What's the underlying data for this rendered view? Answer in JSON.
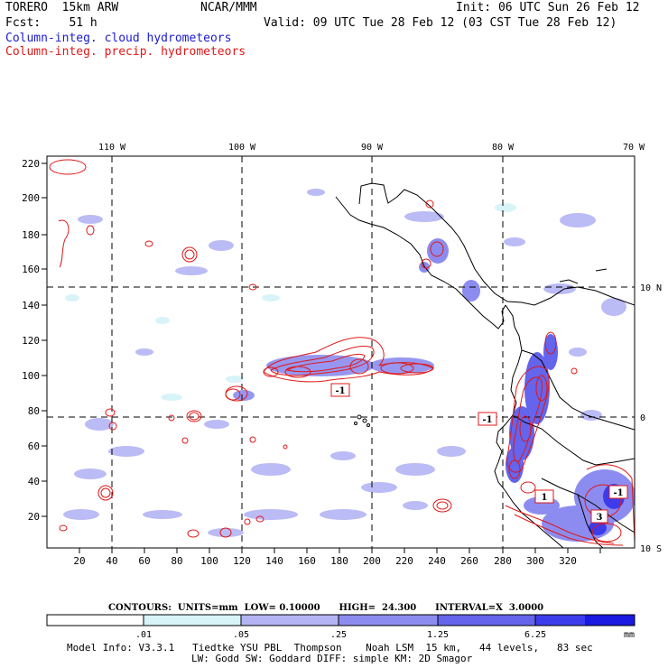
{
  "header": {
    "model": "TORERO  15km ARW",
    "org": "NCAR/MMM",
    "init": "Init: 06 UTC Sun 26 Feb 12",
    "fcst": "Fcst:    51 h",
    "valid": "Valid: 09 UTC Tue 28 Feb 12 (03 CST Tue 28 Feb 12)",
    "field1": "Column-integ. cloud hydrometeors",
    "field2": "Column-integ. precip. hydrometeors"
  },
  "colors": {
    "field1": "#1a1ad6",
    "field2": "#e01818",
    "contour": "#e01818",
    "fill_levels": [
      "#ffffff",
      "#d8f4f8",
      "#b4b4f4",
      "#8c8cf0",
      "#6464ec",
      "#3c3cec",
      "#1a1ae0"
    ]
  },
  "map": {
    "lon_labels": [
      "110 W",
      "100 W",
      "90 W",
      "80 W",
      "70 W"
    ],
    "lat_labels": [
      "10 N",
      "0",
      "10 S"
    ],
    "x_ticks": [
      "20",
      "40",
      "60",
      "80",
      "100",
      "120",
      "140",
      "160",
      "180",
      "200",
      "220",
      "240",
      "260",
      "280",
      "300",
      "320"
    ],
    "y_ticks": [
      "220",
      "200",
      "180",
      "160",
      "140",
      "120",
      "100",
      "80",
      "60",
      "40",
      "20"
    ],
    "box_labels": [
      "-1",
      "-1",
      "1",
      "-1",
      "3"
    ]
  },
  "contours": {
    "text": "CONTOURS:  UNITS=mm  LOW= 0.10000      HIGH=  24.300      INTERVAL=X  3.0000"
  },
  "colorbar": {
    "levels": [
      ".01",
      ".05",
      ".25",
      "1.25",
      "6.25"
    ],
    "unit": "mm"
  },
  "footer": {
    "line1": "Model Info: V3.3.1   Tiedtke YSU PBL  Thompson    Noah LSM  15 km,   44 levels,   83 sec",
    "line2": "LW: Godd SW: Goddard DIFF: simple KM: 2D Smagor"
  }
}
